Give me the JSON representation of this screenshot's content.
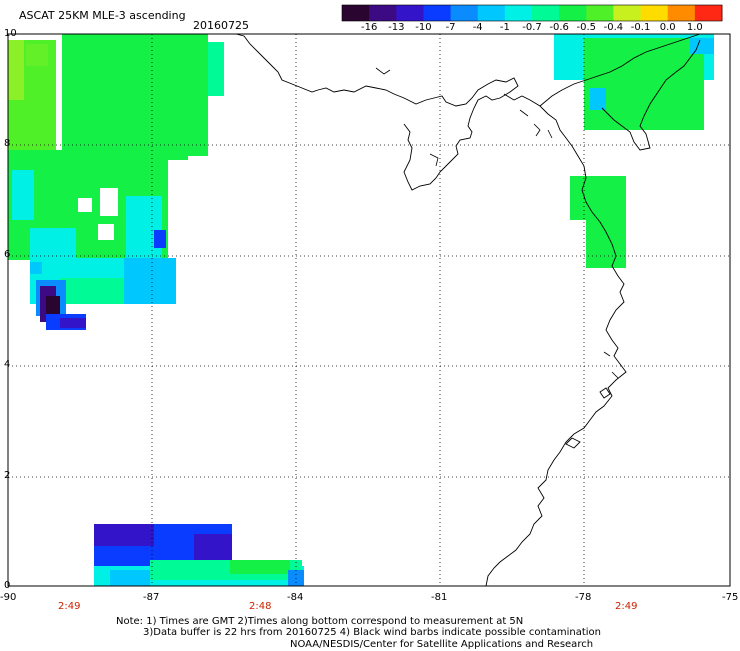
{
  "header": {
    "title": "ASCAT 25KM MLE-3 ascending",
    "date": "20160725"
  },
  "colorbar": {
    "ticks": [
      "-16",
      "-13",
      "-10",
      "-7",
      "-4",
      "-1",
      "-0.7",
      "-0.6",
      "-0.5",
      "-0.4",
      "-0.1",
      "0.0",
      "1.0"
    ],
    "colors": [
      "#2a0530",
      "#3c0a82",
      "#3314c8",
      "#0a3cff",
      "#0a8cff",
      "#00c8ff",
      "#00f0e6",
      "#00fa96",
      "#14f046",
      "#50f028",
      "#c8f01e",
      "#ffdc00",
      "#ff8c00",
      "#ff2814"
    ]
  },
  "axes": {
    "x_ticks": [
      "-90",
      "-87",
      "-84",
      "-81",
      "-78",
      "-75"
    ],
    "y_ticks": [
      "10",
      "8",
      "6",
      "4",
      "2",
      "0"
    ]
  },
  "pass_times": [
    "2:49",
    "2:48",
    "2:49"
  ],
  "notes": {
    "line1": "Note: 1) Times are GMT 2)Times along bottom correspond to measurement at 5N",
    "line2": "3)Data buffer is 22 hrs from 20160725 4) Black wind barbs indicate possible contamination",
    "line3": "NOAA/NESDIS/Center for Satellite Applications and Research"
  }
}
